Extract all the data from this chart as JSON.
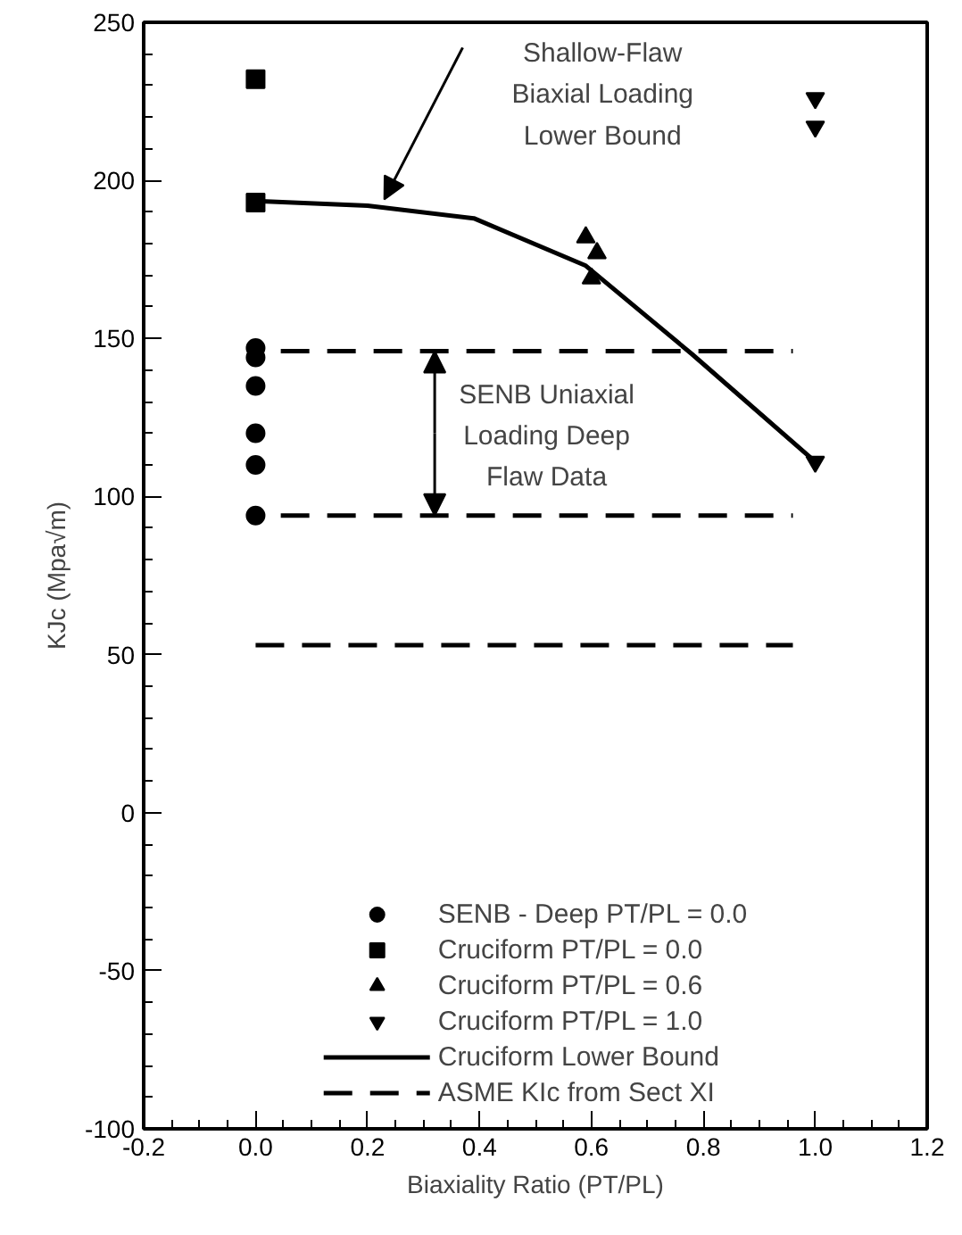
{
  "chart_data": {
    "type": "scatter",
    "xlabel": "Biaxiality Ratio (PT/PL)",
    "ylabel": "KJc (Mpa√m)",
    "xlim": [
      -0.2,
      1.2
    ],
    "xticks": [
      {
        "value": -0.2,
        "label": "-0.2"
      },
      {
        "value": 0,
        "label": "0.0"
      },
      {
        "value": 0.2,
        "label": "0.2"
      },
      {
        "value": 0.4,
        "label": "0.4"
      },
      {
        "value": 0.6,
        "label": "0.6"
      },
      {
        "value": 0.8,
        "label": "0.8"
      },
      {
        "value": 1,
        "label": "1.0"
      },
      {
        "value": 1.2,
        "label": "1.2"
      }
    ],
    "ylim": [
      -100,
      250
    ],
    "yticks": [
      {
        "value": -100,
        "label": "-100"
      },
      {
        "value": -50,
        "label": "-50"
      },
      0,
      50,
      100,
      150,
      200,
      250
    ],
    "grid": false,
    "legend": "bottom",
    "series": [
      {
        "name": "SENB - Deep PT/PL = 0.0",
        "marker": "circle",
        "color": "#000000",
        "x": [
          0,
          0,
          0,
          0,
          0,
          0
        ],
        "values": [
          147,
          144,
          135,
          120,
          110,
          94
        ]
      },
      {
        "name": "Cruciform PT/PL = 0.0",
        "marker": "square",
        "color": "#000000",
        "x": [
          0,
          0
        ],
        "values": [
          232,
          193
        ]
      },
      {
        "name": "Cruciform PT/PL = 0.6",
        "marker": "triangle",
        "color": "#000000",
        "x": [
          0.59,
          0.61,
          0.6
        ],
        "values": [
          182,
          177,
          169
        ]
      },
      {
        "name": "Cruciform PT/PL = 1.0",
        "color": "#000000",
        "x": [
          1,
          1,
          1
        ],
        "values": [
          226,
          217,
          111
        ]
      },
      {
        "name": "Cruciform Lower Bound",
        "type": "line",
        "line_style": "solid",
        "color": "#000000",
        "x": [
          0,
          0.2,
          0.39,
          0.59,
          0.78,
          1
        ],
        "values": [
          193.5,
          192,
          188,
          173,
          145,
          111
        ]
      },
      {
        "name": "ASME KIc from Sect XI",
        "type": "line",
        "line_style": "dashed",
        "color": "#000000",
        "x": [
          0,
          0.96
        ],
        "values": [
          53,
          53
        ]
      },
      {
        "type": "line",
        "line_style": "dashed",
        "color": "#000000",
        "x": [
          0.045,
          0.96
        ],
        "values": [
          146,
          146
        ]
      },
      {
        "type": "line",
        "line_style": "dashed",
        "color": "#000000",
        "x": [
          0.045,
          0.96
        ],
        "values": [
          94,
          94
        ]
      }
    ],
    "annotations": [
      "Shallow-Flaw Biaxial Loading Lower Bound",
      {
        "text": "SENB Uniaxial Loading Deep Flaw Data",
        "x": 0.32,
        "y": 146
      }
    ]
  }
}
